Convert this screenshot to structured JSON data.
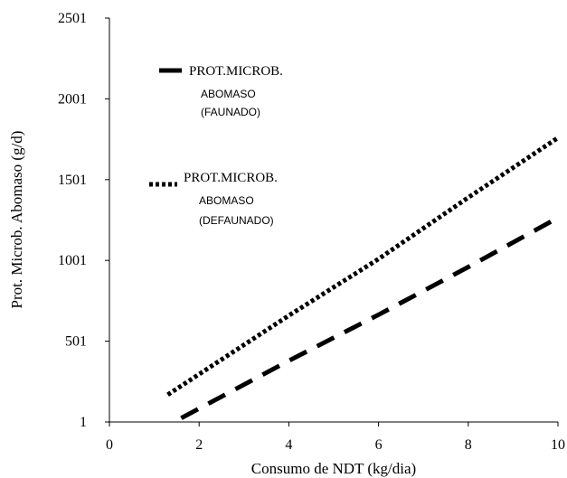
{
  "chart_data": {
    "type": "line",
    "title": "",
    "xlabel": "Consumo de NDT (kg/dia)",
    "ylabel": "Prot. Microb. Abomaso (g/d)",
    "xlim": [
      0,
      10
    ],
    "ylim": [
      1,
      2501
    ],
    "x_ticks": [
      "0",
      "2",
      "4",
      "6",
      "8",
      "10"
    ],
    "y_ticks": [
      "1",
      "501",
      "1001",
      "1501",
      "2001",
      "2501"
    ],
    "grid": false,
    "legend_position": "top-left",
    "series": [
      {
        "name": "PROT.MICROB. ABOMASO (FAUNADO)",
        "legend_lines": [
          "PROT.MICROB.",
          "ABOMASO",
          "(FAUNADO)"
        ],
        "style": "dashed",
        "color": "#000000",
        "x": [
          1.6,
          4,
          6,
          8,
          10
        ],
        "values": [
          25,
          380,
          665,
          960,
          1265
        ]
      },
      {
        "name": "PROT.MICROB. ABOMASO (DEFAUNADO)",
        "legend_lines": [
          "PROT.MICROB.",
          "ABOMASO",
          "(DEFAUNADO)"
        ],
        "style": "dotted",
        "color": "#000000",
        "x": [
          1.3,
          4,
          6,
          8,
          10
        ],
        "values": [
          170,
          660,
          1010,
          1390,
          1760
        ]
      }
    ]
  }
}
